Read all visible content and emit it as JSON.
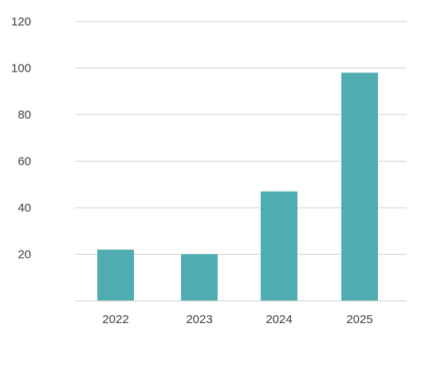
{
  "chart_data": {
    "type": "bar",
    "title": "",
    "xlabel": "",
    "ylabel": "",
    "categories": [
      "2022",
      "2023",
      "2024",
      "2025"
    ],
    "values": [
      22,
      20,
      47,
      98
    ],
    "ylim": [
      0,
      120
    ],
    "yticks": [
      20,
      40,
      60,
      80,
      100,
      120
    ],
    "ytick_labels": [
      "20",
      "40",
      "60",
      "80",
      "100",
      "120"
    ],
    "grid": true,
    "legend": "none",
    "colors": {
      "bar": "#4fadb1",
      "grid": "#d0d0d0",
      "text": "#404040"
    }
  }
}
